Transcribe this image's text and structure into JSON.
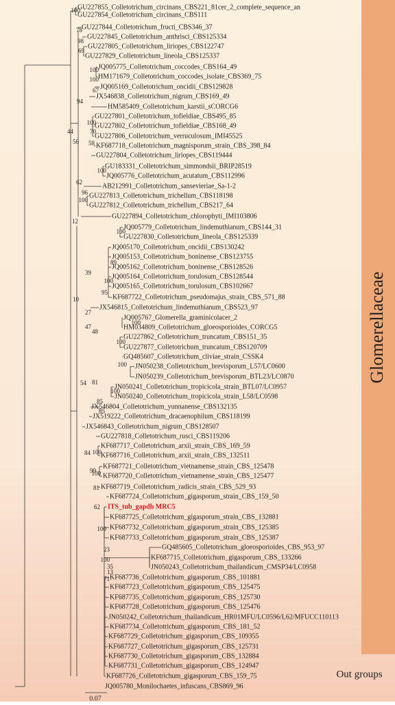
{
  "taxa": [
    "GU227855_Colletotrichum_circinans_CBS221_81cer_2_complete_sequence_an",
    "GU227854_Colletotrichum_circinans_CBS111",
    "GU227844_Colletotrichum_fructi_CBS346_37",
    "GU227845_Colletotrichum_anthrisci_CBS125334",
    "GU227805_Colletotrichum_liriopes_CBS122747",
    "GU227829_Colletotrichum_lineola_CBS125337",
    "JQ005775_Colletotrichum_coccodes_CBS164_49",
    "HM171679_Colletotrichum_coccodes_isolate_CBS369_75",
    "JQ005169_Colletotrichum_oncidii_CBS129828",
    "JX546838_Colletotrichum_nigrum_CBS169_49",
    "HM585409_Colletotrichum_karstii_sCORCG6",
    "GU227801_Colletotrichum_tofieldiae_CBS495_85",
    "GU227802_Colletotrichum_tofieldiae_CBS168_49",
    "GU227806_Colletotrichum_verruculosum_IMI45525",
    "KF687718_Colletotrichum_magnisporum_strain_CBS_398_84",
    "GU227804_Colletotrichum_liriopes_CBS119444",
    "GU183331_Colletotrichum_simmondsii_BRIP28519",
    "JQ005776_Colletotrichum_acutatum_CBS112996",
    "AB212991_Colletotrichum_sansevieriae_Sa-1-2",
    "GU227813_Colletotrichum_trichellum_CBS118198",
    "GU227812_Colletotrichum_trichellum_CBS217_64",
    "GU227894_Colletotrichum_chlorophyti_IMI103806",
    "JQ005779_Colletotrichum_lindemuthianum_CBS144_31",
    "GU227830_Colletotrichum_lineola_CBS125339",
    "JQ005170_Colletotrichum_oncidii_CBS130242",
    "JQ005153_Colletotrichum_boninense_CBS123755",
    "JQ005162_Colletotrichum_boninense_CBS128526",
    "JQ005164_Colletotrichum_torulosum_CBS128544",
    "JQ005165_Colletotrichum_torulosum_CBS102667",
    "KF687722_Colletotrichum_pseudomajus_strain_CBS_571_88",
    "JX546815_Colletotrichum_lindemuthianum_CBS523_97",
    "JQ005767_Glomerella_graminicolacer_2",
    "HM034809_Colletotrichum_gloeosporioides_CORCG5",
    "GU227862_Colletotrichum_truncatum_CBS151_35",
    "GU227877_Colletotrichum_truncatum_CBS120709",
    "GQ485607_Colletotrichum_cliviae_strain_CSSK4",
    "JN050238_Colletotrichum_brevisporum_L57/LC0600",
    "JN050239_Colletotrichum_brevisporum_BTL23/LC0870",
    "JN050241_Colletotrichum_tropicicola_strain_BTL07/LC0957",
    "JN050240_Colletotrichum_tropicicola_strain_L58/LC0598",
    "JX546804_Colletotrichum_yunnanense_CBS132135",
    "JX519222_Colletotrichum_dracaenophilum_CBS118199",
    "JX546843_Colletotrichum_nigrum_CBS128507",
    "GU227818_Colletotrichum_rusci_CBS119206",
    "KF687717_Colletotrichum_arxii_strain_CBS_169_59",
    "KF687716_Colletotrichum_arxii_strain_CBS_132511",
    "KF687721_Colletotrichum_vietnamense_strain_CBS_125478",
    "KF687720_Colletotrichum_vietnamense_strain_CBS_125477",
    "KF687719_Colletotrichum_radicis_strain_CBS_529_93",
    "KF687724_Colletotrichum_gigasporum_strain_CBS_159_50",
    "ITS_tub_gapdh MRC5",
    "KF687725_Colletotrichum_gigasporum_strain_CBS_132881",
    "KF687732_Colletotrichum_gigasporum_strain_CBS_125385",
    "KF687733_Colletotrichum_gigasporum_strain_CBS_125387",
    "GQ485605_Colletotrichum_gloeosporioides_CBS_953_97",
    "KF687715_Colletotrichum_gigasporum_CBS_133266",
    "JN050243_Colletotrichum_thailandicum_CMSP34/LC0958",
    "KF687736_Colletotrichum_gigasporum_CBS_101881",
    "KF687723_Colletotrichum_gigasporum_CBS_125475",
    "KF687735_Colletotrichum_gigasporum_CBS_125730",
    "KF687728_Colletotrichum_gigasporum_CBS_125476",
    "JN050242_Colletotrichum_thailandicum_HR01MFU/LC0596/L62/MFUCC110113",
    "KF687734_Colletotrichum_gigasporum_CBS_181_52",
    "KF687729_Colletotrichum_gigasporum_CBS_109355",
    "KF687727_Colletotrichum_gigasporum_CBS_125731",
    "KF687730_Colletotrichum_gigasporum_CBS_132884",
    "KF687731_Colletotrichum_gigasporum_CBS_124947",
    "KF687726_Colletotrichum_gigasporum_CBS_159_75",
    "JQ005780_Monilochaetes_infuscans_CBS869_96"
  ],
  "support_values": [
    100,
    78,
    98,
    69,
    100,
    100,
    67,
    94,
    100,
    70,
    58,
    44,
    56,
    100,
    62,
    96,
    100,
    12,
    100,
    39,
    89,
    100,
    95,
    10,
    27,
    47,
    100,
    48,
    100,
    100,
    54,
    81,
    100,
    85,
    85,
    84,
    100,
    99,
    100,
    81,
    62,
    100,
    23,
    100,
    35,
    13,
    71
  ],
  "clade_label": "Glomerellaceae",
  "outgroup_label": "Out groups",
  "scale_bar": 0.07
}
